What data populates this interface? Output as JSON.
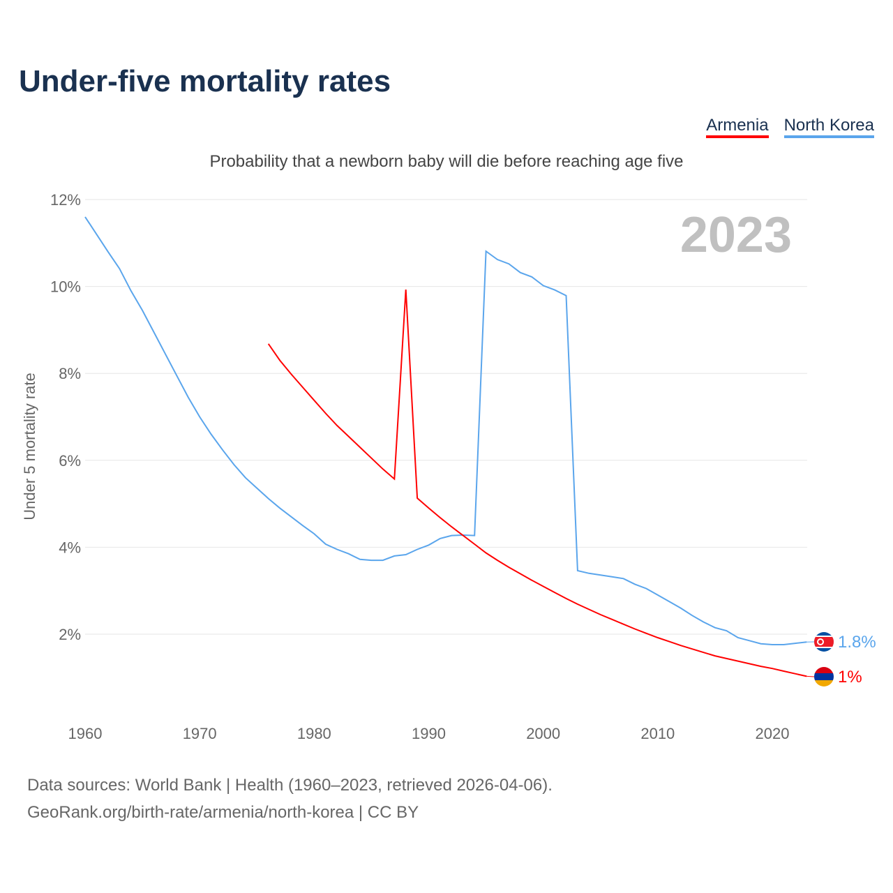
{
  "title": "Under-five mortality rates",
  "legend": [
    {
      "name": "Armenia",
      "color": "#ff0000"
    },
    {
      "name": "North Korea",
      "color": "#5aa5ec"
    }
  ],
  "footer": {
    "line1": "Data sources: World Bank | Health (1960–2023, retrieved 2026-04-06).",
    "line2": "GeoRank.org/birth-rate/armenia/north-korea | CC BY"
  },
  "chart_data": {
    "type": "line",
    "title": "Under-five mortality rates",
    "subtitle": "Probability that a newborn baby will die before reaching age five",
    "xlabel": "",
    "ylabel": "Under 5 mortality rate",
    "year_label": "2023",
    "xlim": [
      1960,
      2023
    ],
    "ylim": [
      0,
      12
    ],
    "xticks": [
      1960,
      1970,
      1980,
      1990,
      2000,
      2010,
      2020
    ],
    "yticks": [
      {
        "v": 2,
        "label": "2%"
      },
      {
        "v": 4,
        "label": "4%"
      },
      {
        "v": 6,
        "label": "6%"
      },
      {
        "v": 8,
        "label": "8%"
      },
      {
        "v": 10,
        "label": "10%"
      },
      {
        "v": 12,
        "label": "12%"
      }
    ],
    "grid": true,
    "series": [
      {
        "name": "North Korea",
        "color": "#5aa5ec",
        "end_label": "1.8%",
        "start": 1960,
        "values": [
          11.6,
          11.2,
          10.8,
          10.41,
          9.9,
          9.45,
          8.95,
          8.45,
          7.95,
          7.45,
          7.0,
          6.6,
          6.24,
          5.9,
          5.6,
          5.36,
          5.12,
          4.9,
          4.7,
          4.5,
          4.31,
          4.07,
          3.95,
          3.85,
          3.72,
          3.7,
          3.7,
          3.8,
          3.83,
          3.95,
          4.05,
          4.2,
          4.27,
          4.28,
          4.27,
          10.81,
          10.62,
          10.52,
          10.32,
          10.22,
          10.02,
          9.92,
          9.79,
          3.46,
          3.4,
          3.36,
          3.32,
          3.28,
          3.15,
          3.05,
          2.9,
          2.75,
          2.6,
          2.43,
          2.28,
          2.15,
          2.08,
          1.92,
          1.85,
          1.78,
          1.76,
          1.76,
          1.79,
          1.82
        ]
      },
      {
        "name": "Armenia",
        "color": "#ff0000",
        "end_label": "1%",
        "start": 1976,
        "values": [
          8.68,
          8.3,
          7.98,
          7.68,
          7.38,
          7.08,
          6.8,
          6.55,
          6.3,
          6.05,
          5.8,
          5.57,
          9.93,
          5.13,
          4.9,
          4.68,
          4.47,
          4.27,
          4.07,
          3.87,
          3.7,
          3.54,
          3.39,
          3.24,
          3.1,
          2.96,
          2.82,
          2.69,
          2.57,
          2.45,
          2.34,
          2.23,
          2.12,
          2.02,
          1.92,
          1.83,
          1.74,
          1.66,
          1.58,
          1.5,
          1.44,
          1.38,
          1.32,
          1.26,
          1.21,
          1.15,
          1.09,
          1.03
        ]
      }
    ]
  }
}
